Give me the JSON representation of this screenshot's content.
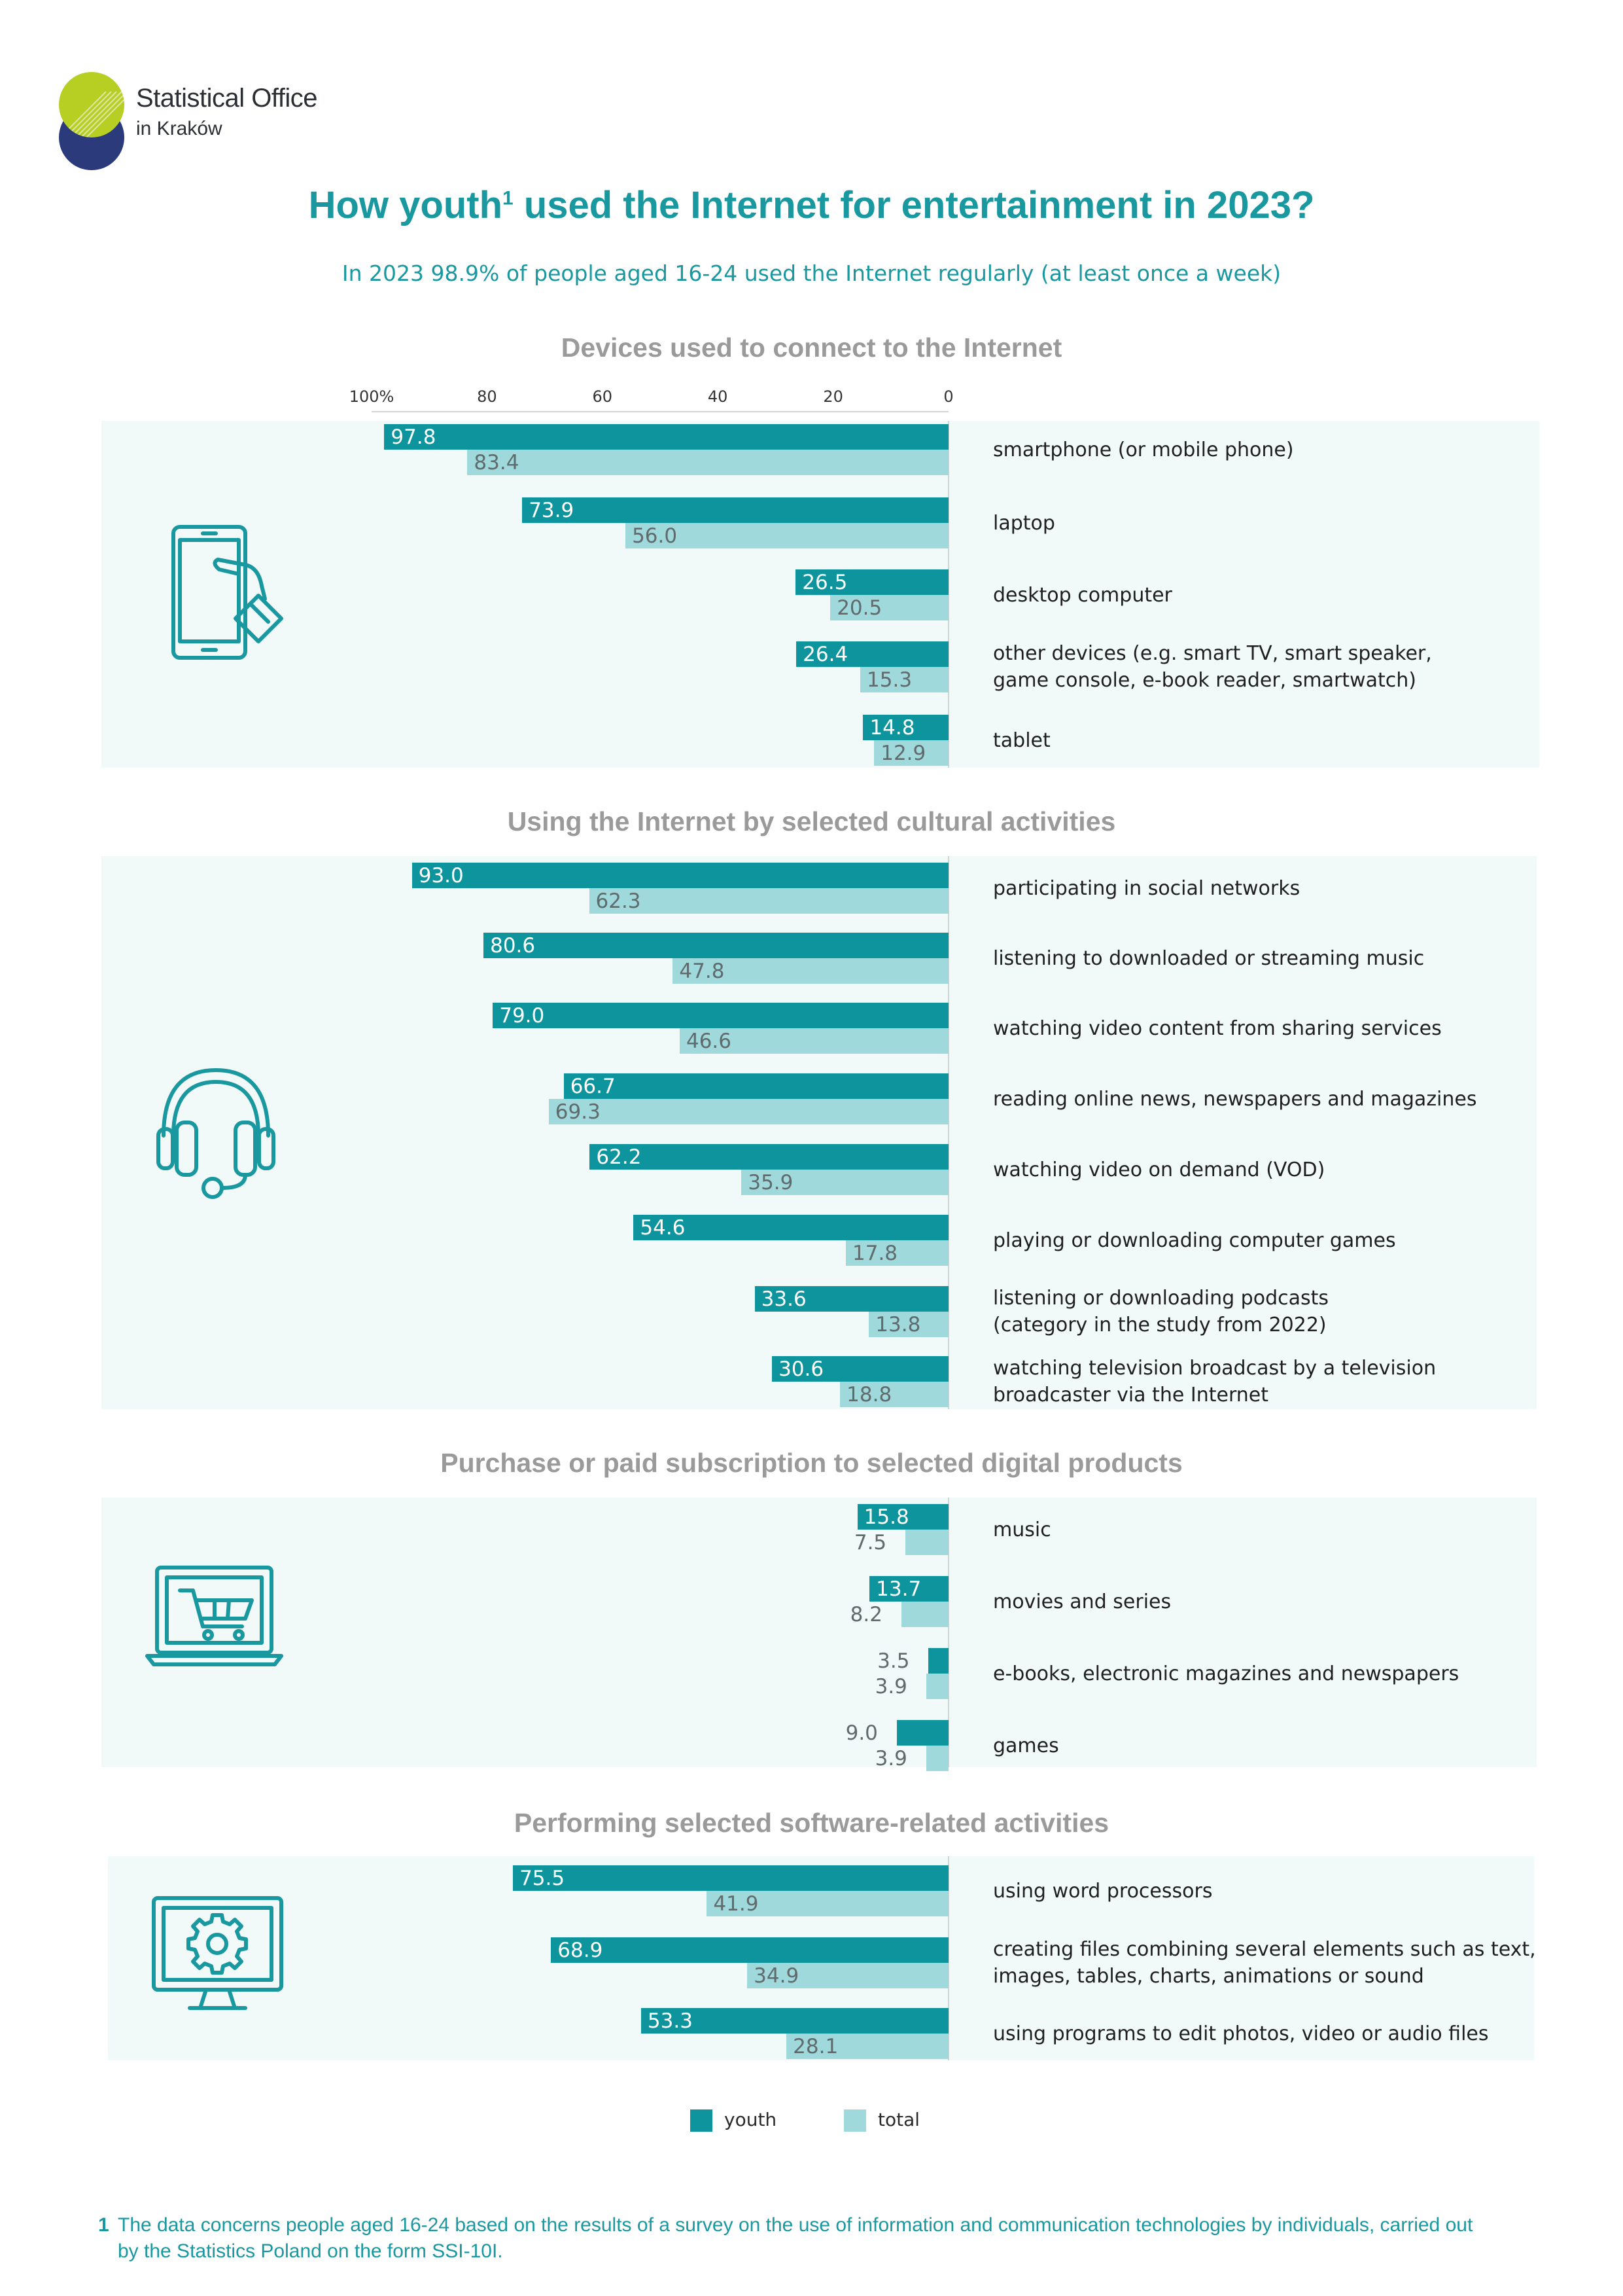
{
  "logo": {
    "line1": "Statistical Office",
    "line2": "in Kraków"
  },
  "header": {
    "title_before": "How youth",
    "title_sup": "1",
    "title_after": " used the Internet for entertainment in 2023?",
    "subtitle": "In 2023 98.9% of people aged 16-24 used the Internet regularly (at least once a week)"
  },
  "colors": {
    "youth": "#0e949c",
    "total": "#9fd9dc",
    "accent": "#1a98a0",
    "panel": "#f1f9f9"
  },
  "axis": {
    "ticks": [
      "100%",
      "80",
      "60",
      "40",
      "20",
      "0"
    ]
  },
  "legend": {
    "youth": "youth",
    "total": "total"
  },
  "chart_data": [
    {
      "type": "bar",
      "orientation": "horizontal",
      "title": "Devices used to connect to the Internet",
      "icon": "smartphone-hand-icon",
      "xlim": [
        0,
        100
      ],
      "categories": [
        "smartphone (or mobile phone)",
        "laptop",
        "desktop computer",
        "other devices (e.g. smart TV, smart speaker,\ngame console, e-book reader, smartwatch)",
        "tablet"
      ],
      "series": [
        {
          "name": "youth",
          "values": [
            97.8,
            73.9,
            26.5,
            26.4,
            14.8
          ]
        },
        {
          "name": "total",
          "values": [
            83.4,
            56.0,
            20.5,
            15.3,
            12.9
          ]
        }
      ]
    },
    {
      "type": "bar",
      "orientation": "horizontal",
      "title": "Using the Internet by selected cultural activities",
      "icon": "headphones-icon",
      "xlim": [
        0,
        100
      ],
      "categories": [
        "participating in social networks",
        "listening to downloaded or streaming music",
        "watching video content from sharing services",
        "reading online news, newspapers and magazines",
        "watching video on demand (VOD)",
        "playing or downloading computer games",
        "listening or downloading podcasts\n(category in the study from 2022)",
        "watching television broadcast by a television\nbroadcaster via the Internet"
      ],
      "series": [
        {
          "name": "youth",
          "values": [
            93.0,
            80.6,
            79.0,
            66.7,
            62.2,
            54.6,
            33.6,
            30.6
          ]
        },
        {
          "name": "total",
          "values": [
            62.3,
            47.8,
            46.6,
            69.3,
            35.9,
            17.8,
            13.8,
            18.8
          ]
        }
      ]
    },
    {
      "type": "bar",
      "orientation": "horizontal",
      "title": "Purchase or paid subscription to selected digital products",
      "icon": "laptop-cart-icon",
      "xlim": [
        0,
        100
      ],
      "categories": [
        "music",
        "movies and series",
        "e-books, electronic magazines and newspapers",
        "games"
      ],
      "series": [
        {
          "name": "youth",
          "values": [
            15.8,
            13.7,
            3.5,
            9.0
          ]
        },
        {
          "name": "total",
          "values": [
            7.5,
            8.2,
            3.9,
            3.9
          ]
        }
      ]
    },
    {
      "type": "bar",
      "orientation": "horizontal",
      "title": "Performing selected software-related activities",
      "icon": "monitor-gear-icon",
      "xlim": [
        0,
        100
      ],
      "categories": [
        "using word processors",
        "creating files combining several elements such as text,\nimages, tables, charts, animations or sound",
        "using programs to edit photos, video or audio files"
      ],
      "series": [
        {
          "name": "youth",
          "values": [
            75.5,
            68.9,
            53.3
          ]
        },
        {
          "name": "total",
          "values": [
            41.9,
            34.9,
            28.1
          ]
        }
      ]
    }
  ],
  "footnote": {
    "number": "1",
    "text": "The data concerns people aged 16-24 based on the results of a survey on the use of information and communication technologies by individuals, carried out by the Statistics Poland on the form SSI-10I."
  }
}
